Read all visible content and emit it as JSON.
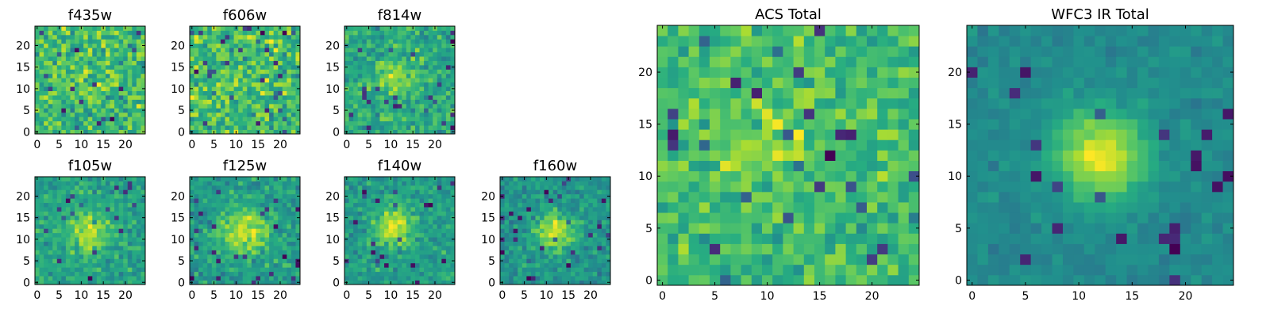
{
  "chart_data": [
    {
      "type": "heatmap",
      "title": "f435w",
      "grid_size": 25,
      "colormap": "viridis",
      "xticks": [
        "0",
        "5",
        "10",
        "15",
        "20"
      ],
      "yticks": [
        "0",
        "5",
        "10",
        "15",
        "20"
      ],
      "source_profile": {
        "peak": 0.05,
        "noise": 0.28,
        "center": [
          12,
          12
        ],
        "sigma": 3.0,
        "seed": 11
      }
    },
    {
      "type": "heatmap",
      "title": "f606w",
      "grid_size": 25,
      "colormap": "viridis",
      "xticks": [
        "0",
        "5",
        "10",
        "15",
        "20"
      ],
      "yticks": [
        "0",
        "5",
        "10",
        "15",
        "20"
      ],
      "source_profile": {
        "peak": 0.05,
        "noise": 0.28,
        "center": [
          12,
          12
        ],
        "sigma": 3.0,
        "seed": 23
      }
    },
    {
      "type": "heatmap",
      "title": "f814w",
      "grid_size": 25,
      "colormap": "viridis",
      "xticks": [
        "0",
        "5",
        "10",
        "15",
        "20"
      ],
      "yticks": [
        "0",
        "5",
        "10",
        "15",
        "20"
      ],
      "source_profile": {
        "peak": 0.2,
        "noise": 0.24,
        "center": [
          11,
          13
        ],
        "sigma": 3.0,
        "seed": 37
      }
    },
    {
      "type": "heatmap",
      "title": "f105w",
      "grid_size": 25,
      "colormap": "viridis",
      "xticks": [
        "0",
        "5",
        "10",
        "15",
        "20"
      ],
      "yticks": [
        "0",
        "5",
        "10",
        "15",
        "20"
      ],
      "source_profile": {
        "peak": 0.35,
        "noise": 0.22,
        "center": [
          12,
          12
        ],
        "sigma": 3.2,
        "seed": 41
      }
    },
    {
      "type": "heatmap",
      "title": "f125w",
      "grid_size": 25,
      "colormap": "viridis",
      "xticks": [
        "0",
        "5",
        "10",
        "15",
        "20"
      ],
      "yticks": [
        "0",
        "5",
        "10",
        "15",
        "20"
      ],
      "source_profile": {
        "peak": 0.35,
        "noise": 0.2,
        "center": [
          12,
          12
        ],
        "sigma": 3.8,
        "seed": 53
      }
    },
    {
      "type": "heatmap",
      "title": "f140w",
      "grid_size": 25,
      "colormap": "viridis",
      "xticks": [
        "0",
        "5",
        "10",
        "15",
        "20"
      ],
      "yticks": [
        "0",
        "5",
        "10",
        "15",
        "20"
      ],
      "source_profile": {
        "peak": 0.4,
        "noise": 0.2,
        "center": [
          11,
          13
        ],
        "sigma": 3.0,
        "seed": 67
      }
    },
    {
      "type": "heatmap",
      "title": "f160w",
      "grid_size": 25,
      "colormap": "viridis",
      "xticks": [
        "0",
        "5",
        "10",
        "15",
        "20"
      ],
      "yticks": [
        "0",
        "5",
        "10",
        "15",
        "20"
      ],
      "source_profile": {
        "peak": 0.45,
        "noise": 0.2,
        "center": [
          12,
          12
        ],
        "sigma": 2.8,
        "seed": 79
      }
    },
    {
      "type": "heatmap",
      "title": "ACS Total",
      "grid_size": 25,
      "colormap": "viridis",
      "xticks": [
        "0",
        "5",
        "10",
        "15",
        "20"
      ],
      "yticks": [
        "0",
        "5",
        "10",
        "15",
        "20"
      ],
      "source_profile": {
        "peak": 0.15,
        "noise": 0.22,
        "center": [
          10,
          13
        ],
        "sigma": 3.5,
        "seed": 97
      }
    },
    {
      "type": "heatmap",
      "title": "WFC3 IR Total",
      "grid_size": 25,
      "colormap": "viridis",
      "xticks": [
        "0",
        "5",
        "10",
        "15",
        "20"
      ],
      "yticks": [
        "0",
        "5",
        "10",
        "15",
        "20"
      ],
      "source_profile": {
        "peak": 0.55,
        "noise": 0.1,
        "center": [
          12,
          12
        ],
        "sigma": 3.0,
        "seed": 113
      }
    }
  ]
}
